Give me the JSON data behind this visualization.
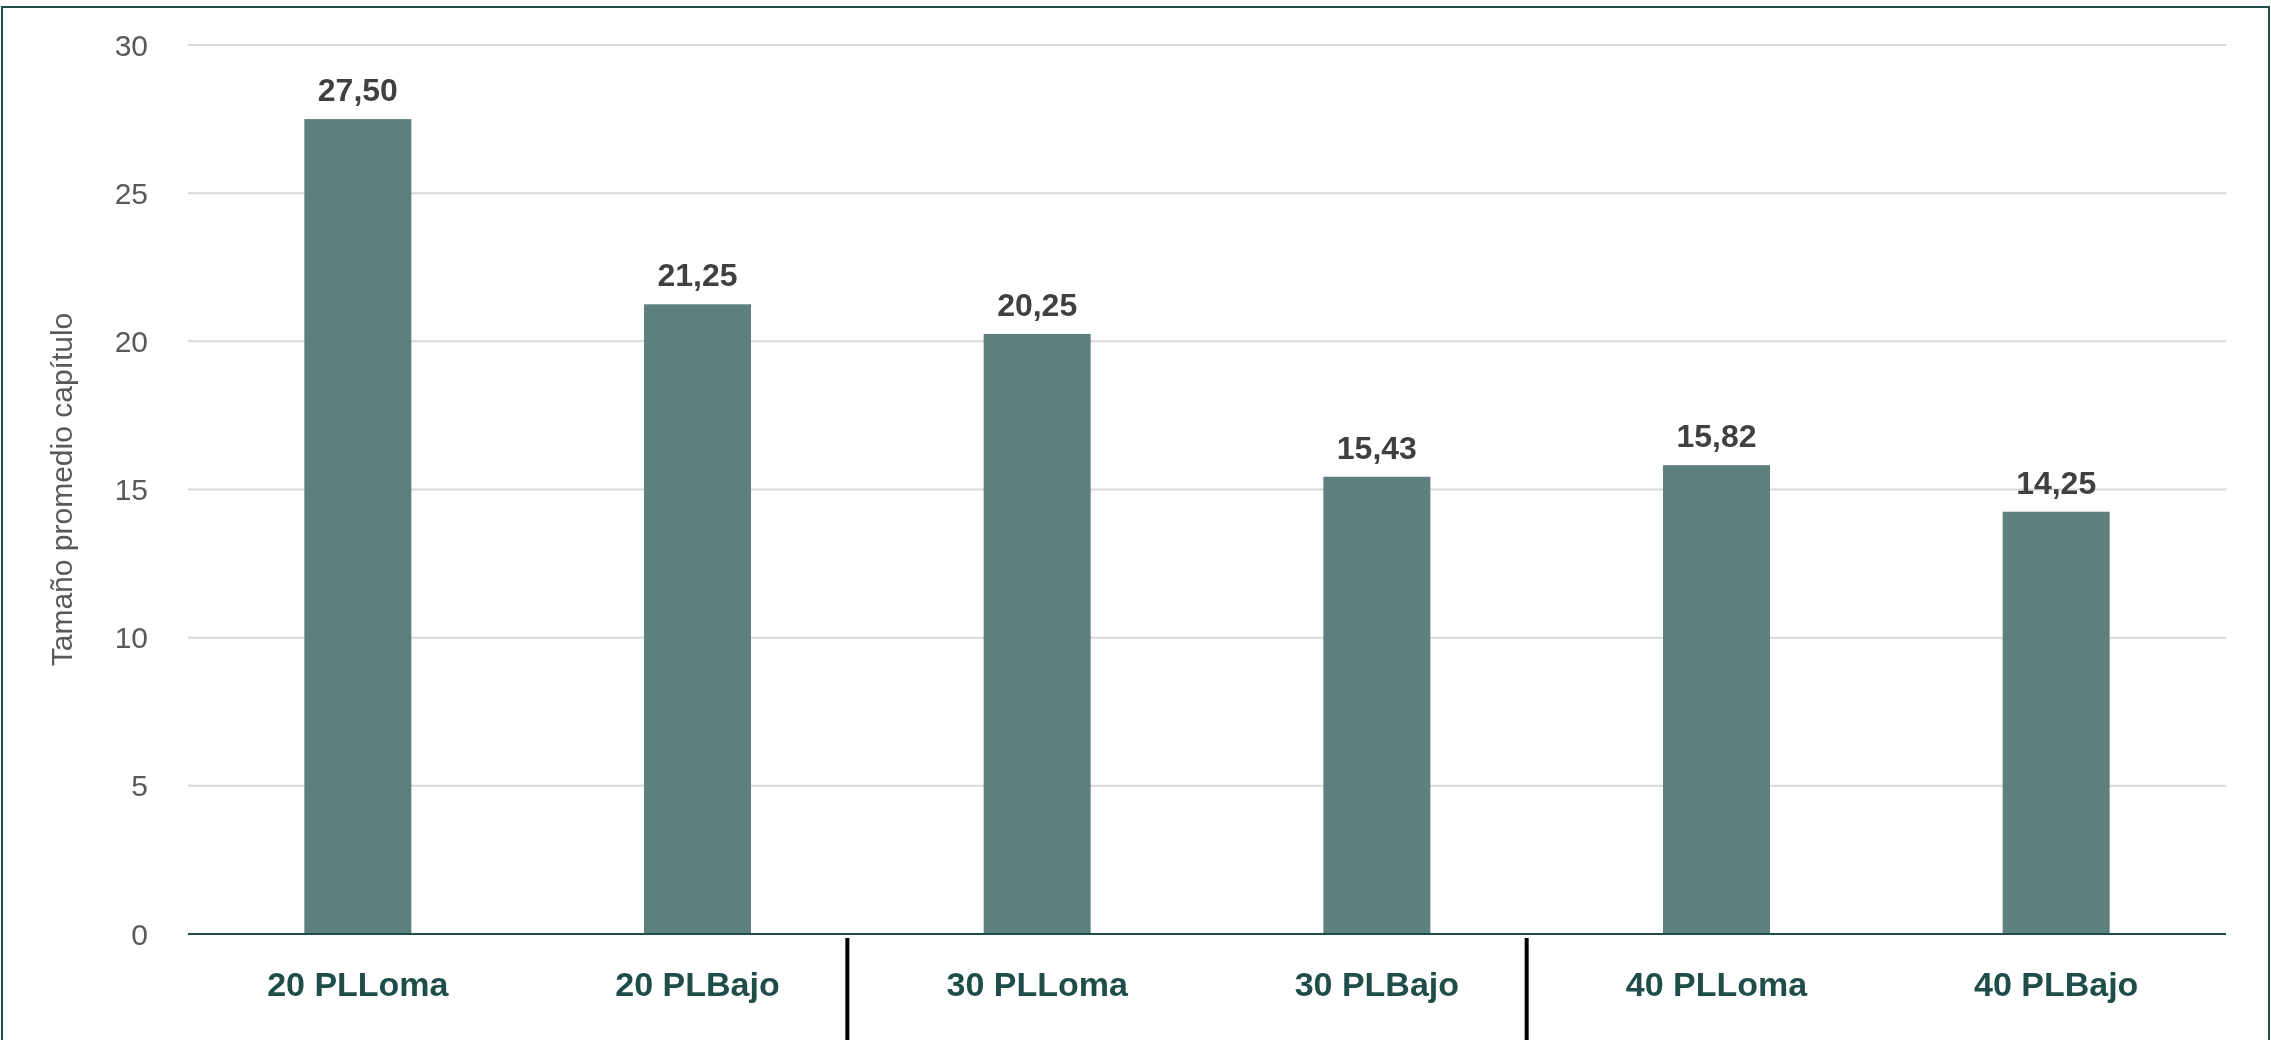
{
  "chart_data": {
    "type": "bar",
    "ylabel": "Tamaño promedio capítulo",
    "categories": [
      "20 PLLoma",
      "20 PLBajo",
      "30 PLLoma",
      "30 PLBajo",
      "40 PLLoma",
      "40 PLBajo"
    ],
    "values": [
      27.5,
      21.25,
      20.25,
      15.43,
      15.82,
      14.25
    ],
    "value_labels": [
      "27,50",
      "21,25",
      "20,25",
      "15,43",
      "15,82",
      "14,25"
    ],
    "color": "#5d807e",
    "ylim": [
      0,
      30
    ],
    "yticks": [
      0,
      5,
      10,
      15,
      20,
      25,
      30
    ],
    "grid": "y"
  }
}
